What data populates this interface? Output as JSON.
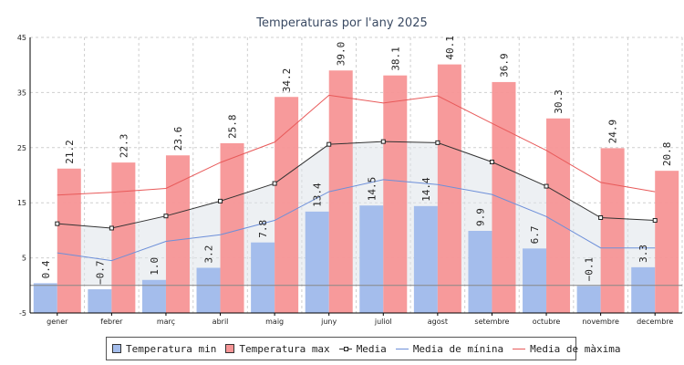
{
  "chart_data": {
    "type": "bar",
    "title": "Temperaturas por l'any 2025",
    "categories": [
      "gener",
      "febrer",
      "març",
      "abril",
      "maig",
      "juny",
      "juliol",
      "agost",
      "setembre",
      "octubre",
      "novembre",
      "decembre"
    ],
    "ylim": [
      -5,
      45
    ],
    "yticks": [
      -5,
      5,
      15,
      25,
      35,
      45
    ],
    "grid": true,
    "legend_placement": "bottom",
    "series": [
      {
        "name": "Temperatura min",
        "kind": "bar",
        "color": "#a4bdec",
        "values": [
          0.4,
          -0.7,
          1.0,
          3.2,
          7.8,
          13.4,
          14.5,
          14.4,
          9.9,
          6.7,
          -0.1,
          3.3
        ],
        "labels": [
          "0.4",
          "−0.7",
          "1.0",
          "3.2",
          "7.8",
          "13.4",
          "14.5",
          "14.4",
          "9.9",
          "6.7",
          "−0.1",
          "3.3"
        ]
      },
      {
        "name": "Temperatura max",
        "kind": "bar",
        "color": "#f79596",
        "values": [
          21.2,
          22.3,
          23.6,
          25.8,
          34.2,
          39.0,
          38.1,
          40.1,
          36.9,
          30.3,
          24.9,
          20.8
        ],
        "labels": [
          "21.2",
          "22.3",
          "23.6",
          "25.8",
          "34.2",
          "39.0",
          "38.1",
          "40.1",
          "36.9",
          "30.3",
          "24.9",
          "20.8"
        ]
      },
      {
        "name": "Media",
        "kind": "line-marker",
        "color": "#333333",
        "values": [
          11.2,
          10.4,
          12.6,
          15.3,
          18.5,
          25.6,
          26.1,
          25.9,
          22.4,
          18.0,
          12.3,
          11.8
        ]
      },
      {
        "name": "Media de mínina",
        "kind": "line",
        "color": "#6d8fd9",
        "values": [
          5.9,
          4.5,
          8.0,
          9.2,
          11.8,
          17.0,
          19.2,
          18.3,
          16.5,
          12.5,
          6.8,
          6.8
        ]
      },
      {
        "name": "Media de màxima",
        "kind": "line",
        "color": "#e85a5a",
        "values": [
          16.4,
          16.9,
          17.6,
          22.3,
          26.0,
          34.5,
          33.1,
          34.4,
          29.4,
          24.5,
          18.7,
          17.0
        ]
      }
    ]
  }
}
